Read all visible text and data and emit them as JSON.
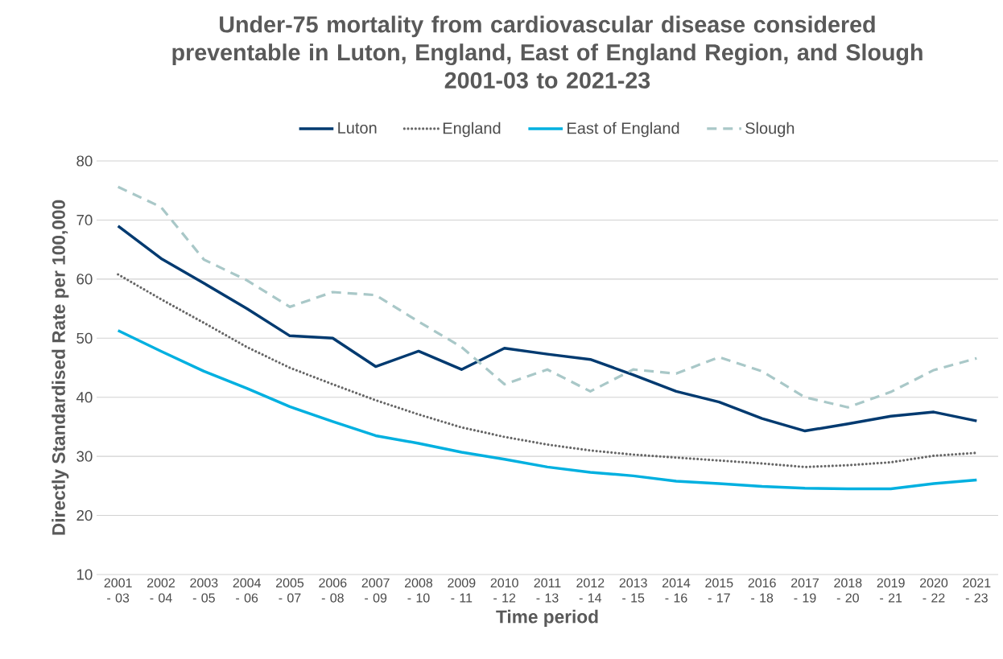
{
  "chart_data": {
    "type": "line",
    "title": "Under-75 mortality from cardiovascular disease considered preventable in Luton, England, East of England Region, and Slough",
    "subtitle": "2001-03 to 2021-23",
    "xlabel": "Time period",
    "ylabel": "Directly Standardised Rate per 100,000",
    "categories": [
      "2001 - 03",
      "2002 - 04",
      "2003 - 05",
      "2004 - 06",
      "2005 - 07",
      "2006 - 08",
      "2007 - 09",
      "2008 - 10",
      "2009 - 11",
      "2010 - 12",
      "2011 - 13",
      "2012 - 14",
      "2013 - 15",
      "2014 - 16",
      "2015 - 17",
      "2016 - 18",
      "2017 - 19",
      "2018 - 20",
      "2019 - 21",
      "2020 - 22",
      "2021 - 23"
    ],
    "series": [
      {
        "name": "Luton",
        "color": "#003a70",
        "line_style": "solid",
        "values": [
          69,
          63.5,
          59.3,
          55,
          50.4,
          50,
          45.2,
          47.8,
          44.7,
          48.3,
          47.3,
          46.4,
          43.8,
          41,
          39.2,
          36.4,
          34.3,
          35.5,
          36.8,
          37.5,
          36
        ]
      },
      {
        "name": "England",
        "color": "#666666",
        "line_style": "dotted",
        "values": [
          60.8,
          56.6,
          52.6,
          48.5,
          45,
          42.2,
          39.5,
          37.1,
          34.9,
          33.3,
          32,
          31,
          30.3,
          29.8,
          29.3,
          28.8,
          28.2,
          28.5,
          29,
          30.1,
          30.6
        ]
      },
      {
        "name": "East of England",
        "color": "#00b0e0",
        "line_style": "solid",
        "values": [
          51.3,
          47.8,
          44.4,
          41.5,
          38.4,
          35.9,
          33.5,
          32.2,
          30.7,
          29.5,
          28.2,
          27.3,
          26.7,
          25.8,
          25.4,
          24.9,
          24.6,
          24.5,
          24.5,
          25.4,
          26
        ]
      },
      {
        "name": "Slough",
        "color": "#a9c8c8",
        "line_style": "dashed",
        "values": [
          75.6,
          72.2,
          63.3,
          59.8,
          55.3,
          57.8,
          57.3,
          52.8,
          48.5,
          42.2,
          44.7,
          41,
          44.7,
          44,
          46.8,
          44.4,
          40,
          38.3,
          40.9,
          44.6,
          46.6
        ]
      }
    ],
    "ylim": [
      10,
      80
    ],
    "yticks": [
      10,
      20,
      30,
      40,
      50,
      60,
      70,
      80
    ],
    "grid": "y",
    "legend": "top",
    "marker": "none"
  }
}
